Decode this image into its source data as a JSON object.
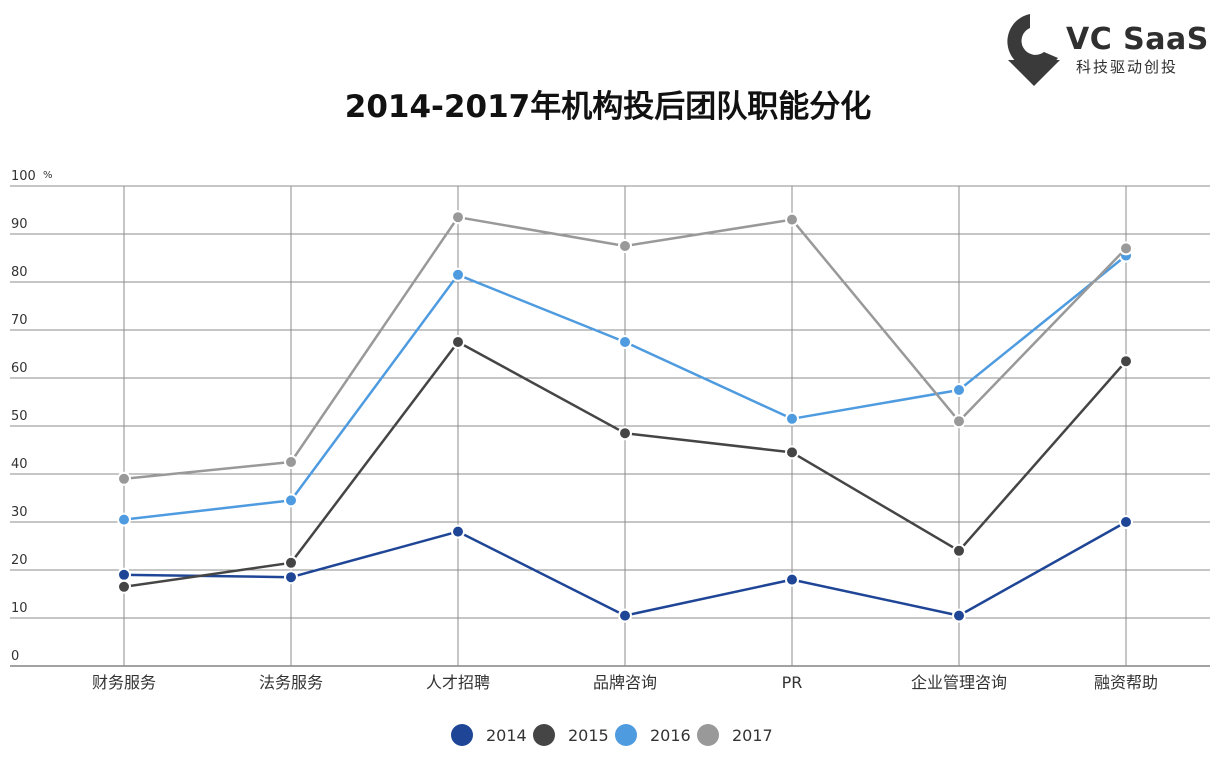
{
  "logo": {
    "name": "VC SaaS",
    "tagline": "科技驱动创投"
  },
  "chart_data": {
    "type": "line",
    "title": "2014-2017年机构投后团队职能分化",
    "y_unit": "%",
    "ylim": [
      0,
      100
    ],
    "yticks": [
      0,
      10,
      20,
      30,
      40,
      50,
      60,
      70,
      80,
      90,
      100
    ],
    "grid": true,
    "legend_position": "bottom",
    "categories": [
      "财务服务",
      "法务服务",
      "人才招聘",
      "品牌咨询",
      "PR",
      "企业管理咨询",
      "融资帮助"
    ],
    "series": [
      {
        "name": "2014",
        "color": "#1f4696",
        "values": [
          19,
          18.5,
          28,
          10.5,
          18,
          10.5,
          30
        ]
      },
      {
        "name": "2015",
        "color": "#454545",
        "values": [
          16.5,
          21.5,
          67.5,
          48.5,
          44.5,
          24,
          63.5
        ]
      },
      {
        "name": "2016",
        "color": "#4e9be0",
        "values": [
          30.5,
          34.5,
          81.5,
          67.5,
          51.5,
          57.5,
          85.5
        ]
      },
      {
        "name": "2017",
        "color": "#999999",
        "values": [
          39,
          42.5,
          93.5,
          87.5,
          93,
          51,
          87
        ]
      }
    ]
  }
}
